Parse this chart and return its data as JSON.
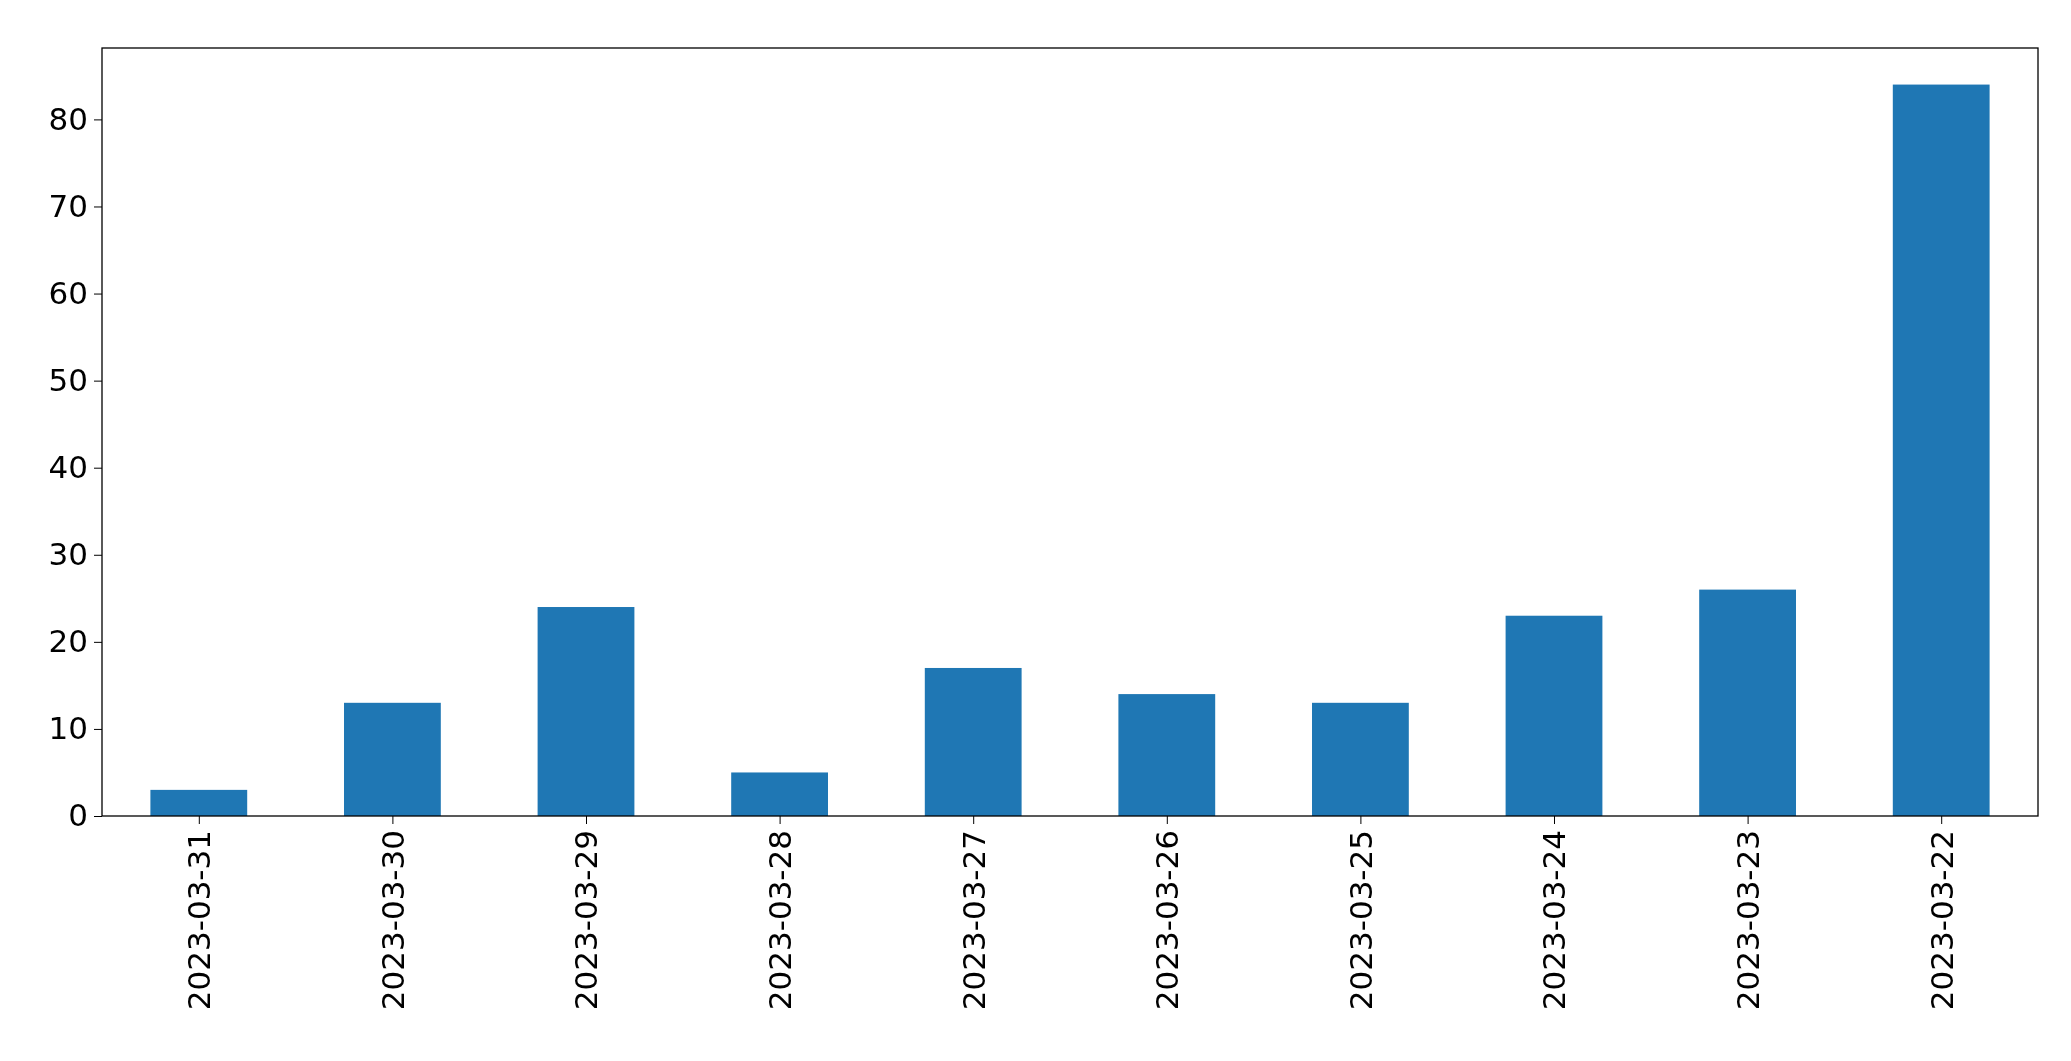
{
  "chart_data": {
    "type": "bar",
    "categories": [
      "2023-03-31",
      "2023-03-30",
      "2023-03-29",
      "2023-03-28",
      "2023-03-27",
      "2023-03-26",
      "2023-03-25",
      "2023-03-24",
      "2023-03-23",
      "2023-03-22"
    ],
    "values": [
      3,
      13,
      24,
      5,
      17,
      14,
      13,
      23,
      26,
      84
    ],
    "color": "#1f77b4",
    "ylim": [
      0,
      88.2
    ],
    "yticks": [
      0,
      10,
      20,
      30,
      40,
      50,
      60,
      70,
      80
    ]
  }
}
